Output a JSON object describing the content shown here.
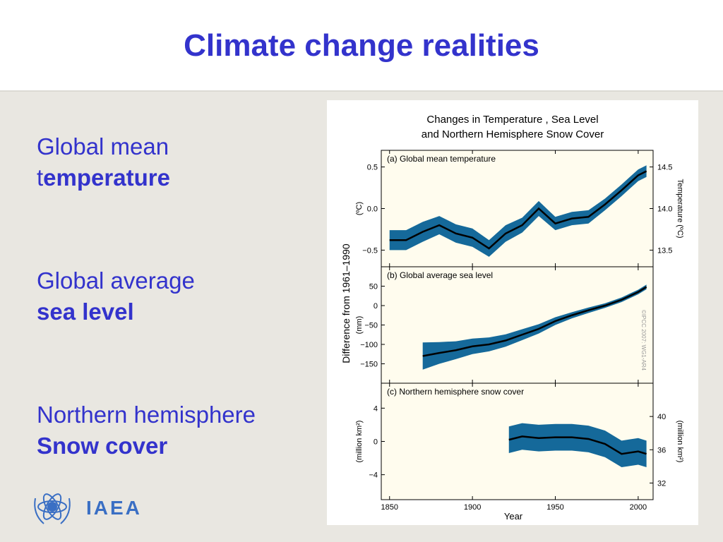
{
  "slide": {
    "title": "Climate change realities",
    "points": [
      {
        "line1": "Global mean",
        "line2_plain": "t",
        "line2_bold": "emperature"
      },
      {
        "line1": "Global average",
        "line2_plain": "",
        "line2_bold": "sea level"
      },
      {
        "line1": "Northern hemisphere",
        "line2_plain": "",
        "line2_bold": "Snow cover"
      }
    ],
    "logo": "IAEA"
  },
  "figure": {
    "title": [
      "Changes in Temperature , Sea Level",
      "and Northern Hemisphere Snow Cover"
    ],
    "y_label": "Difference from 1961–1990",
    "x_label": "Year",
    "credit": "©IPCC 2007: WG1-AR4"
  },
  "chart_data": [
    {
      "type": "line",
      "title": "(a) Global mean temperature",
      "y_label": "(ºC)",
      "y2_label": "Temperature (ºC)",
      "color": "#000000",
      "band_color": "#15699a",
      "x": [
        1850,
        1860,
        1870,
        1880,
        1890,
        1900,
        1910,
        1920,
        1930,
        1940,
        1950,
        1960,
        1970,
        1980,
        1990,
        2000,
        2005
      ],
      "values": [
        -0.38,
        -0.38,
        -0.28,
        -0.2,
        -0.3,
        -0.35,
        -0.48,
        -0.3,
        -0.2,
        0.0,
        -0.18,
        -0.12,
        -0.1,
        0.05,
        0.22,
        0.4,
        0.45
      ],
      "lower": [
        -0.5,
        -0.5,
        -0.4,
        -0.31,
        -0.41,
        -0.46,
        -0.58,
        -0.4,
        -0.29,
        -0.09,
        -0.26,
        -0.2,
        -0.18,
        -0.02,
        0.15,
        0.33,
        0.38
      ],
      "upper": [
        -0.26,
        -0.26,
        -0.16,
        -0.09,
        -0.19,
        -0.24,
        -0.38,
        -0.2,
        -0.11,
        0.09,
        -0.1,
        -0.04,
        -0.02,
        0.12,
        0.29,
        0.47,
        0.52
      ],
      "ylim": [
        -0.7,
        0.7
      ],
      "yticks": [
        0.5,
        {
          "value": 0,
          "label": "0.0"
        },
        {
          "value": -0.5,
          "label": "−0.5"
        }
      ],
      "y2lim": [
        13.3,
        14.7
      ],
      "y2ticks": [
        14.5,
        {
          "value": 14,
          "label": "14.0"
        },
        13.5
      ]
    },
    {
      "type": "line",
      "title": "(b) Global average sea level",
      "y_label": "(mm)",
      "color": "#000000",
      "band_color": "#15699a",
      "x": [
        1870,
        1880,
        1890,
        1900,
        1910,
        1920,
        1930,
        1940,
        1950,
        1960,
        1970,
        1980,
        1990,
        2000,
        2005
      ],
      "values": [
        -130,
        -122,
        -115,
        -105,
        -100,
        -90,
        -75,
        -60,
        -40,
        -25,
        -12,
        0,
        15,
        35,
        48
      ],
      "lower": [
        -165,
        -150,
        -138,
        -125,
        -118,
        -106,
        -89,
        -72,
        -50,
        -33,
        -19,
        -6,
        9,
        29,
        42
      ],
      "upper": [
        -95,
        -94,
        -92,
        -85,
        -82,
        -74,
        -61,
        -48,
        -30,
        -17,
        -5,
        6,
        21,
        41,
        54
      ],
      "ylim": [
        -200,
        100
      ],
      "yticks": [
        50,
        0,
        {
          "value": -50,
          "label": "−50"
        },
        {
          "value": -100,
          "label": "−100"
        },
        {
          "value": -150,
          "label": "−150"
        }
      ]
    },
    {
      "type": "line",
      "title": "(c) Northern hemisphere snow cover",
      "y_label": "(million km²)",
      "y2_label": "(million km²)",
      "color": "#000000",
      "band_color": "#15699a",
      "x": [
        1922,
        1930,
        1940,
        1950,
        1960,
        1970,
        1980,
        1990,
        2000,
        2005
      ],
      "values": [
        0.2,
        0.6,
        0.4,
        0.5,
        0.5,
        0.3,
        -0.3,
        -1.5,
        -1.2,
        -1.5
      ],
      "lower": [
        -1.4,
        -1.0,
        -1.2,
        -1.1,
        -1.1,
        -1.3,
        -1.9,
        -3.1,
        -2.8,
        -3.1
      ],
      "upper": [
        1.8,
        2.2,
        2.0,
        2.1,
        2.1,
        1.9,
        1.3,
        0.1,
        0.4,
        0.1
      ],
      "xlim": [
        1845,
        2009
      ],
      "xticks": [
        1850,
        1900,
        1950,
        2000
      ],
      "ylim": [
        -7,
        7
      ],
      "yticks": [
        4,
        0,
        {
          "value": -4,
          "label": "−4"
        }
      ],
      "y2lim": [
        30,
        44
      ],
      "y2ticks": [
        40,
        36,
        32
      ]
    }
  ]
}
